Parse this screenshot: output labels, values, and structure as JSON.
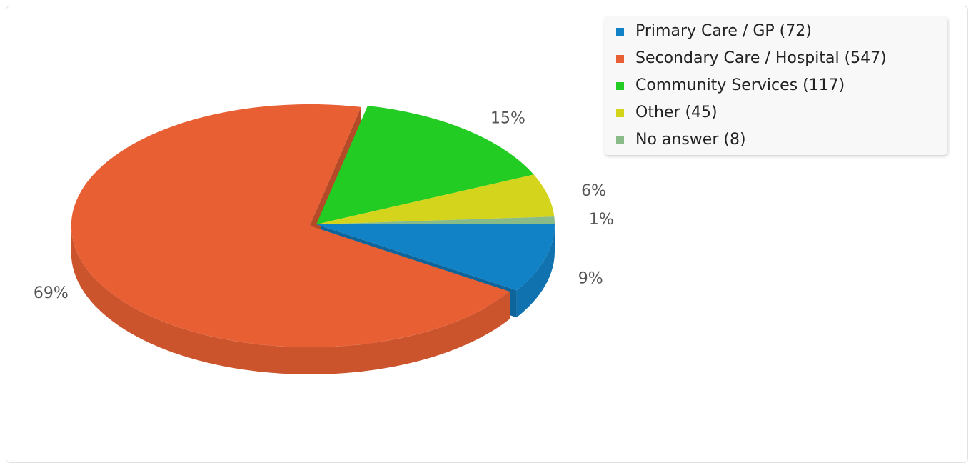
{
  "chart_data": {
    "type": "pie",
    "title": "",
    "legend_position": "top-right",
    "series": [
      {
        "name": "Primary Care / GP",
        "count": 72,
        "value": 9,
        "label": "9%",
        "color": "#1282c7",
        "legend_label": "Primary Care / GP (72)"
      },
      {
        "name": "Secondary Care / Hospital",
        "count": 547,
        "value": 69,
        "label": "69%",
        "color": "#e85f33",
        "legend_label": "Secondary Care / Hospital (547)"
      },
      {
        "name": "Community Services",
        "count": 117,
        "value": 15,
        "label": "15%",
        "color": "#22cc22",
        "legend_label": "Community Services (117)"
      },
      {
        "name": "Other",
        "count": 45,
        "value": 6,
        "label": "6%",
        "color": "#d4d41c",
        "legend_label": "Other (45)"
      },
      {
        "name": "No answer",
        "count": 8,
        "value": 1,
        "label": "1%",
        "color": "#88bb88",
        "legend_label": "No answer (8)"
      }
    ]
  }
}
